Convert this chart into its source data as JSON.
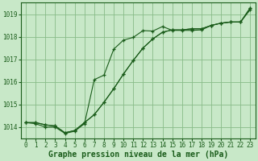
{
  "hours": [
    0,
    1,
    2,
    3,
    4,
    5,
    6,
    7,
    8,
    9,
    10,
    11,
    12,
    13,
    14,
    15,
    16,
    17,
    18,
    19,
    20,
    21,
    22,
    23
  ],
  "line_smooth1": [
    1014.2,
    1014.2,
    1014.1,
    1014.05,
    1013.75,
    1013.85,
    1014.2,
    1014.55,
    1015.1,
    1015.7,
    1016.35,
    1016.95,
    1017.5,
    1017.9,
    1018.2,
    1018.3,
    1018.3,
    1018.35,
    1018.35,
    1018.5,
    1018.6,
    1018.65,
    1018.65,
    1019.2
  ],
  "line_smooth2": [
    1014.2,
    1014.2,
    1014.1,
    1014.05,
    1013.75,
    1013.85,
    1014.2,
    1014.55,
    1015.1,
    1015.7,
    1016.35,
    1016.95,
    1017.5,
    1017.9,
    1018.2,
    1018.3,
    1018.3,
    1018.35,
    1018.35,
    1018.5,
    1018.6,
    1018.65,
    1018.65,
    1019.28
  ],
  "line_squiggly": [
    1014.2,
    1014.15,
    1014.0,
    1014.0,
    1013.72,
    1013.82,
    1014.15,
    1016.1,
    1016.3,
    1017.45,
    1017.85,
    1017.97,
    1018.27,
    1018.25,
    1018.45,
    1018.28,
    1018.28,
    1018.28,
    1018.3,
    1018.5,
    1018.6,
    1018.65,
    1018.65,
    1019.28
  ],
  "ylim": [
    1013.5,
    1019.5
  ],
  "xlim": [
    -0.5,
    23.5
  ],
  "bg_color": "#c8e8c8",
  "grid_color": "#88bb88",
  "line_color": "#1a5c1a",
  "xlabel": "Graphe pression niveau de la mer (hPa)",
  "xticks": [
    0,
    1,
    2,
    3,
    4,
    5,
    6,
    7,
    8,
    9,
    10,
    11,
    12,
    13,
    14,
    15,
    16,
    17,
    18,
    19,
    20,
    21,
    22,
    23
  ],
  "yticks": [
    1014,
    1015,
    1016,
    1017,
    1018,
    1019
  ],
  "tick_fontsize": 5.5,
  "xlabel_fontsize": 7
}
